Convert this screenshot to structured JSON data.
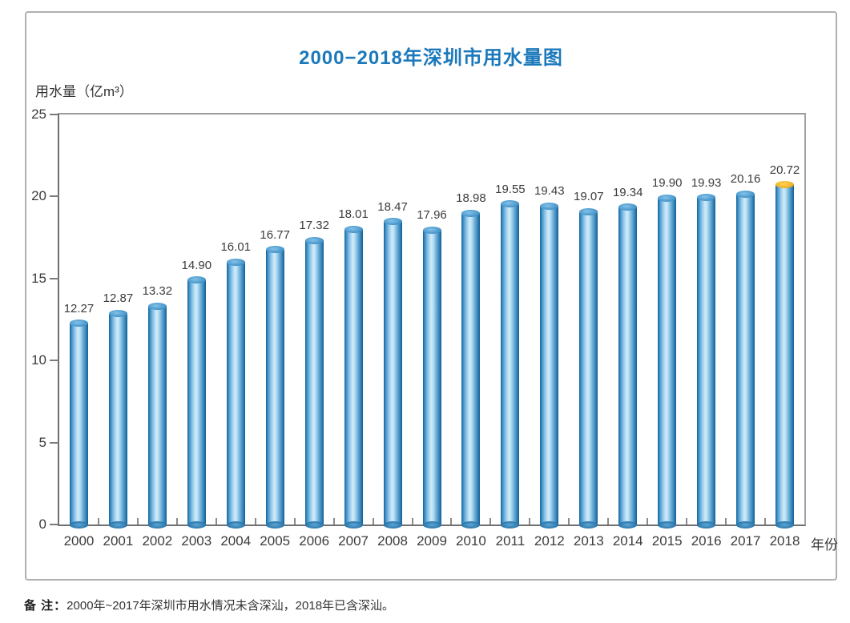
{
  "chart_data": {
    "type": "bar",
    "title": "2000−2018年深圳市用水量图",
    "ylabel": "用水量（亿m³）",
    "xlabel": "年份",
    "categories": [
      "2000",
      "2001",
      "2002",
      "2003",
      "2004",
      "2005",
      "2006",
      "2007",
      "2008",
      "2009",
      "2010",
      "2011",
      "2012",
      "2013",
      "2014",
      "2015",
      "2016",
      "2017",
      "2018"
    ],
    "values": [
      12.27,
      12.87,
      13.32,
      14.9,
      16.01,
      16.77,
      17.32,
      18.01,
      18.47,
      17.96,
      18.98,
      19.55,
      19.43,
      19.07,
      19.34,
      19.9,
      19.93,
      20.16,
      20.72
    ],
    "ylim": [
      0,
      25
    ],
    "yticks": [
      0,
      5,
      10,
      15,
      20,
      25
    ],
    "grid": false,
    "legend_position": "none",
    "bar_style": "3d-cylinder",
    "highlight": {
      "category": "2018",
      "cap_color": "#f2b32c"
    }
  },
  "note": {
    "label": "备 注：",
    "text": "2000年~2017年深圳市用水情况未含深汕，2018年已含深汕。"
  },
  "colors": {
    "title": "#1b79bb",
    "bar_edge": "#15639b",
    "bar_mid": "#4f9cd0",
    "bar_highlight": "#d2ebfa",
    "cap_blue": "#4f9cd0",
    "cap_orange": "#f2b32c",
    "axis": "#8a8a8a",
    "text": "#3c3c3c"
  }
}
